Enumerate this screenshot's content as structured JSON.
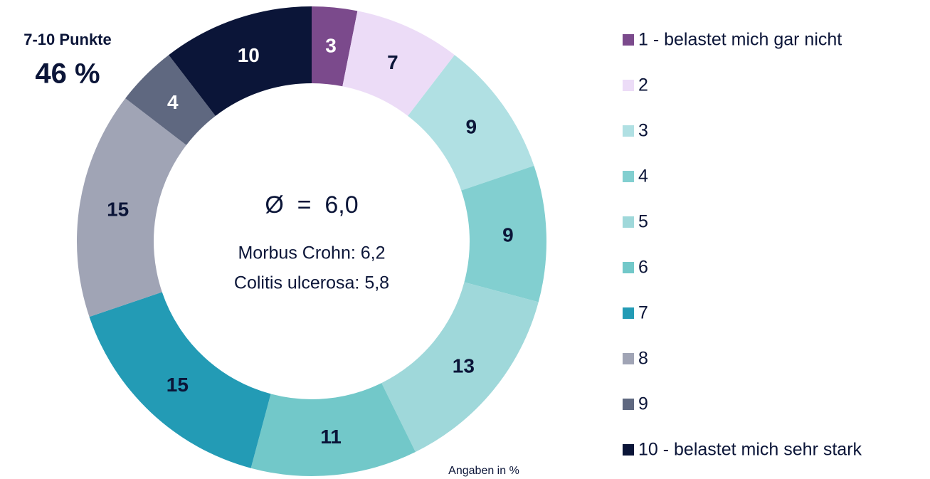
{
  "chart_data": {
    "type": "donut",
    "categories": [
      "1 - belastet mich gar nicht",
      "2",
      "3",
      "4",
      "5",
      "6",
      "7",
      "8",
      "9",
      "10 - belastet mich sehr stark"
    ],
    "values": [
      3,
      7,
      9,
      9,
      13,
      11,
      15,
      15,
      4,
      10
    ],
    "colors": [
      "#7b4a8c",
      "#ecdcf7",
      "#b0e0e3",
      "#82cfd0",
      "#9fd8da",
      "#72c8c9",
      "#239bb5",
      "#a0a4b5",
      "#5f6880",
      "#0b1538"
    ],
    "label_colors": [
      "#ffffff",
      "#0b1538",
      "#0b1538",
      "#0b1538",
      "#0b1538",
      "#0b1538",
      "#0b1538",
      "#0b1538",
      "#ffffff",
      "#ffffff"
    ],
    "center_title": "Ø  =  6,0",
    "center_lines": [
      "Morbus Crohn: 6,2",
      "Colitis ulcerosa: 5,8"
    ],
    "annotation_title": "7-10 Punkte",
    "annotation_value": "46 %",
    "note": "Angaben in %",
    "legend": "right"
  }
}
